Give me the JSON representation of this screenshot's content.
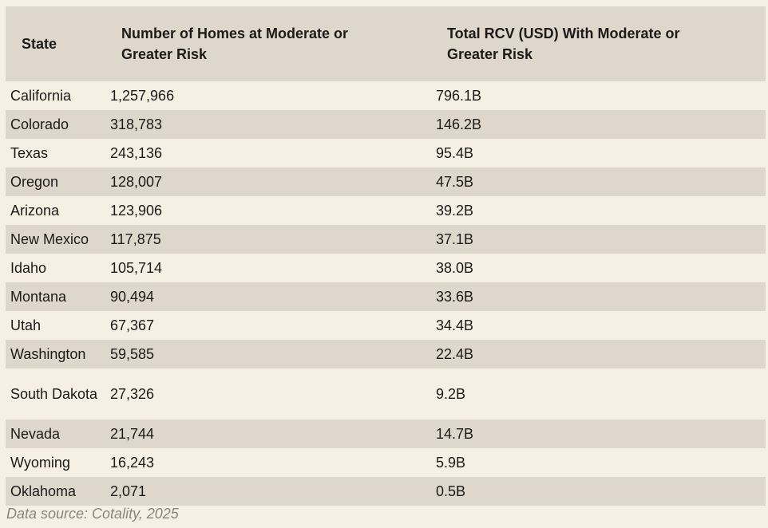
{
  "table": {
    "headers": {
      "state": "State",
      "homes": "Number of Homes at Moderate or Greater Risk",
      "rcv": "Total RCV (USD) With Moderate or Greater Risk"
    },
    "rows": [
      {
        "state": "California",
        "homes": "1,257,966",
        "rcv": "796.1B"
      },
      {
        "state": "Colorado",
        "homes": "318,783",
        "rcv": "146.2B"
      },
      {
        "state": "Texas",
        "homes": "243,136",
        "rcv": "95.4B"
      },
      {
        "state": "Oregon",
        "homes": "128,007",
        "rcv": "47.5B"
      },
      {
        "state": "Arizona",
        "homes": "123,906",
        "rcv": "39.2B"
      },
      {
        "state": "New Mexico",
        "homes": "117,875",
        "rcv": "37.1B"
      },
      {
        "state": "Idaho",
        "homes": "105,714",
        "rcv": "38.0B"
      },
      {
        "state": "Montana",
        "homes": "90,494",
        "rcv": "33.6B"
      },
      {
        "state": "Utah",
        "homes": "67,367",
        "rcv": "34.4B"
      },
      {
        "state": "Washington",
        "homes": "59,585",
        "rcv": "22.4B"
      },
      {
        "state": "South Dakota",
        "homes": "27,326",
        "rcv": "9.2B"
      },
      {
        "state": "Nevada",
        "homes": "21,744",
        "rcv": "14.7B"
      },
      {
        "state": "Wyoming",
        "homes": "16,243",
        "rcv": "5.9B"
      },
      {
        "state": "Oklahoma",
        "homes": "2,071",
        "rcv": "0.5B"
      }
    ]
  },
  "footer": {
    "source": "Data source: Cotality, 2025"
  }
}
